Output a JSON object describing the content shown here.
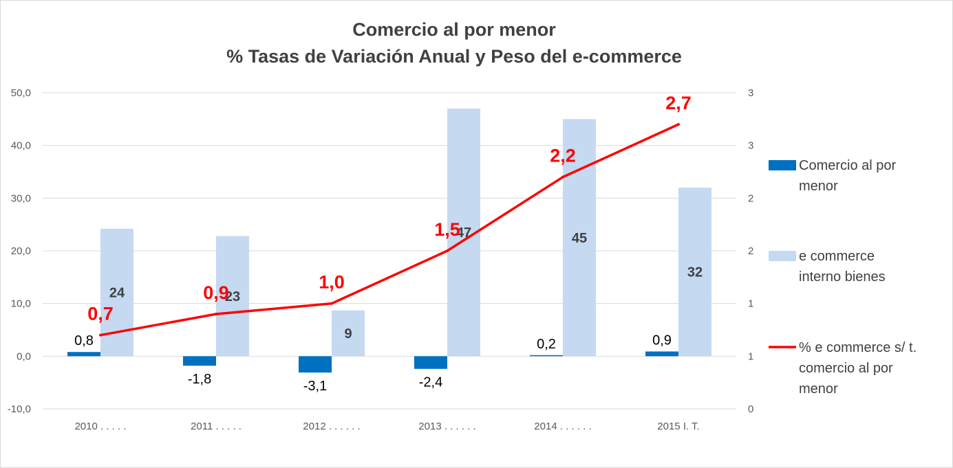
{
  "chart_data": {
    "type": "bar",
    "title_lines": [
      "Comercio al por menor",
      "% Tasas de Variación Anual y Peso del e-commerce"
    ],
    "categories": [
      "2010 . . . . .",
      "2011 . . . . .",
      "2012 . . . . . .",
      "2013 . . . . . .",
      "2014 . . . . . .",
      "2015 I. T."
    ],
    "series": [
      {
        "name": "Comercio al por menor",
        "kind": "bar",
        "axis": "left",
        "color": "#0070c0",
        "values": [
          0.8,
          -1.8,
          -3.1,
          -2.4,
          0.2,
          0.9
        ],
        "labels": [
          "0,8",
          "-1,8",
          "-3,1",
          "-2,4",
          "0,2",
          "0,9"
        ]
      },
      {
        "name": "e commerce interno bienes",
        "kind": "bar",
        "axis": "left",
        "color": "#c5d9f1",
        "values": [
          24.2,
          22.8,
          8.7,
          47.0,
          45.0,
          32.0
        ],
        "labels": [
          "24",
          "23",
          "9",
          "47",
          "45",
          "32"
        ]
      },
      {
        "name": "% e commerce s/ t. comercio al por menor",
        "kind": "line",
        "axis": "right",
        "color": "#ff0000",
        "values": [
          0.7,
          0.9,
          1.0,
          1.5,
          2.2,
          2.7
        ],
        "labels": [
          "0,7",
          "0,9",
          "1,0",
          "1,5",
          "2,2",
          "2,7"
        ]
      }
    ],
    "y_left": {
      "min": -10,
      "max": 50,
      "ticks": [
        "50,0",
        "40,0",
        "30,0",
        "20,0",
        "10,0",
        "0,0",
        "-10,0"
      ]
    },
    "y_right": {
      "min": 0,
      "max": 3,
      "ticks": [
        "3",
        "3",
        "2",
        "2",
        "1",
        "1",
        "0"
      ]
    },
    "grid": true,
    "legend_position": "right",
    "legend_lines": [
      [
        "Comercio al por",
        "menor"
      ],
      [
        "e commerce",
        "interno bienes"
      ],
      [
        "% e commerce s/ t.",
        "comercio al por",
        "menor"
      ]
    ]
  }
}
